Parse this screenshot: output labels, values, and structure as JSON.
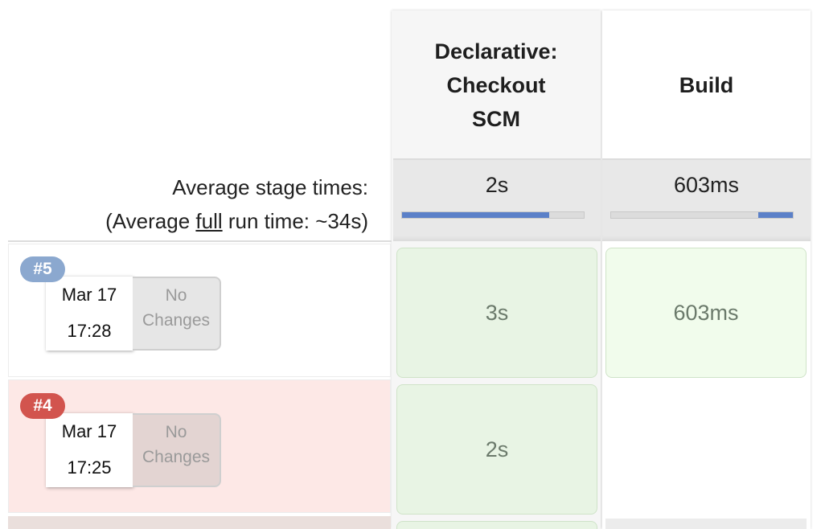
{
  "stages": [
    {
      "name": "Declarative: Checkout SCM",
      "lines": [
        "Declarative:",
        "Checkout",
        "SCM"
      ],
      "avg_time": "2s",
      "avg_bar_fill": 0.81
    },
    {
      "name": "Build",
      "lines": [
        "Build"
      ],
      "avg_time": "603ms",
      "avg_bar_fill": 0.19
    }
  ],
  "summary": {
    "avg_stage_label": "Average stage times:",
    "avg_run_prefix": "(Average ",
    "avg_run_full": "full",
    "avg_run_suffix": " run time: ~34s)"
  },
  "builds": [
    {
      "number": "#5",
      "status": "success",
      "date": "Mar 17",
      "time": "17:28",
      "changes": [
        "No",
        "Changes"
      ],
      "stage_times": [
        "3s",
        "603ms"
      ]
    },
    {
      "number": "#4",
      "status": "failed",
      "date": "Mar 17",
      "time": "17:25",
      "changes": [
        "No",
        "Changes"
      ],
      "stage_times": [
        "2s",
        ""
      ]
    }
  ],
  "colors": {
    "success_badge": "#8ba8cf",
    "failed_badge": "#d2544e",
    "stage_success_bg": "#e8f4e4",
    "stage_success_border": "#cfe3c8",
    "failed_row_bg": "#fde8e6",
    "bar_fill": "#5b80c8"
  }
}
